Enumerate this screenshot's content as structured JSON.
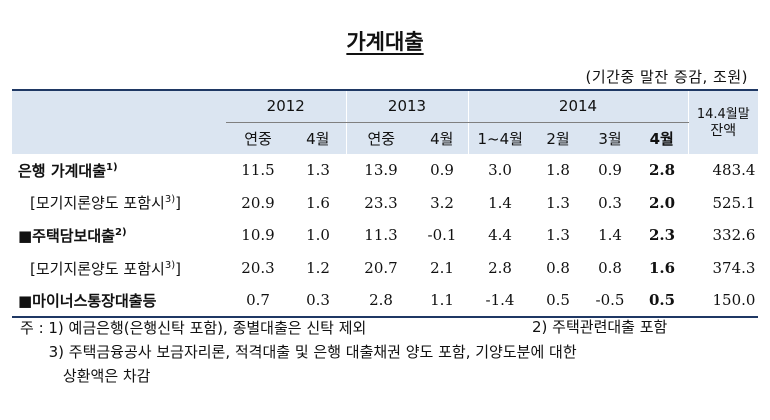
{
  "title": "가계대출",
  "unit": "(기간중 말잔 증감, 조원)",
  "header": {
    "years": [
      "2012",
      "2013",
      "2014"
    ],
    "balance_line1": "14.4월말",
    "balance_line2": "잔액",
    "sub": [
      "연중",
      "4월",
      "연중",
      "4월",
      "1~4월",
      "2월",
      "3월",
      "4월"
    ]
  },
  "rows": [
    {
      "label": "은행 가계대출",
      "sup": "1)",
      "values": [
        "11.5",
        "1.3",
        "13.9",
        "0.9",
        "3.0",
        "1.8",
        "0.9",
        "2.8",
        "483.4"
      ]
    },
    {
      "label": "[모기지론양도 포함시",
      "sup": "3)",
      "close": "]",
      "values": [
        "20.9",
        "1.6",
        "23.3",
        "3.2",
        "1.4",
        "1.3",
        "0.3",
        "2.0",
        "525.1"
      ]
    },
    {
      "label": "■주택담보대출",
      "sup": "2)",
      "values": [
        "10.9",
        "1.0",
        "11.3",
        "-0.1",
        "4.4",
        "1.3",
        "1.4",
        "2.3",
        "332.6"
      ]
    },
    {
      "label": "[모기지론양도 포함시",
      "sup": "3)",
      "close": "]",
      "values": [
        "20.3",
        "1.2",
        "20.7",
        "2.1",
        "2.8",
        "0.8",
        "0.8",
        "1.6",
        "374.3"
      ]
    },
    {
      "label": "■마이너스통장대출등",
      "sup": "",
      "values": [
        "0.7",
        "0.3",
        "2.8",
        "1.1",
        "-1.4",
        "0.5",
        "-0.5",
        "0.5",
        "150.0"
      ]
    }
  ],
  "notes": {
    "line1": "주 : 1) 예금은행(은행신탁 포함), 종별대출은 신탁 제외",
    "line1b": "2) 주택관련대출 포함",
    "line2": "      3) 주택금융공사 보금자리론, 적격대출 및 은행 대출채권 양도 포함, 기양도분에 대한",
    "line3": "         상환액은 차감"
  }
}
